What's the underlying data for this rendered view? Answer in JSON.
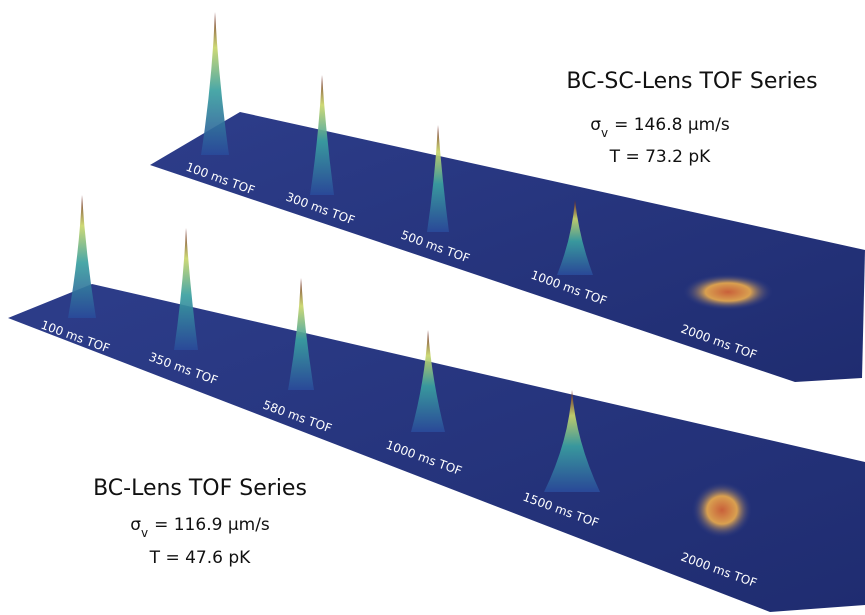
{
  "panels": [
    {
      "title": "BC-SC-Lens TOF Series",
      "sigma": {
        "symbol": "σ",
        "sub": "v",
        "text": "= 146.8 μm/s"
      },
      "temperature": "T = 73.2 pK",
      "labels": [
        "100 ms TOF",
        "300 ms TOF",
        "500 ms TOF",
        "1000 ms TOF",
        "2000 ms TOF"
      ]
    },
    {
      "title": "BC-Lens TOF Series",
      "sigma": {
        "symbol": "σ",
        "sub": "v",
        "text": "= 116.9 μm/s"
      },
      "temperature": "T = 47.6 pK",
      "labels": [
        "100 ms TOF",
        "350 ms TOF",
        "580 ms TOF",
        "1000 ms TOF",
        "1500 ms TOF",
        "2000 ms TOF"
      ]
    }
  ]
}
